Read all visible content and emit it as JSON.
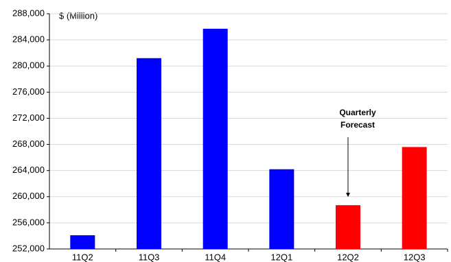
{
  "chart_data": {
    "type": "bar",
    "unit_label": "$ (Million)",
    "annotation": [
      "Quarterly",
      "Forecast"
    ],
    "categories": [
      "11Q2",
      "11Q3",
      "11Q4",
      "12Q1",
      "12Q2",
      "12Q3"
    ],
    "values": [
      254100,
      281200,
      285700,
      264200,
      258700,
      267600
    ],
    "colors": [
      "#0000ff",
      "#0000ff",
      "#0000ff",
      "#0000ff",
      "#ff0000",
      "#ff0000"
    ],
    "ylim": [
      252000,
      288000
    ],
    "yticks": [
      {
        "value": 252000,
        "label": "252,000"
      },
      {
        "value": 256000,
        "label": "256,000"
      },
      {
        "value": 260000,
        "label": "260,000"
      },
      {
        "value": 264000,
        "label": "264,000"
      },
      {
        "value": 268000,
        "label": "268,000"
      },
      {
        "value": 272000,
        "label": "272,000"
      },
      {
        "value": 276000,
        "label": "276,000"
      },
      {
        "value": 280000,
        "label": "280,000"
      },
      {
        "value": 284000,
        "label": "284,000"
      },
      {
        "value": 288000,
        "label": "288,000"
      }
    ],
    "grid": true,
    "annotation_category": 4
  }
}
